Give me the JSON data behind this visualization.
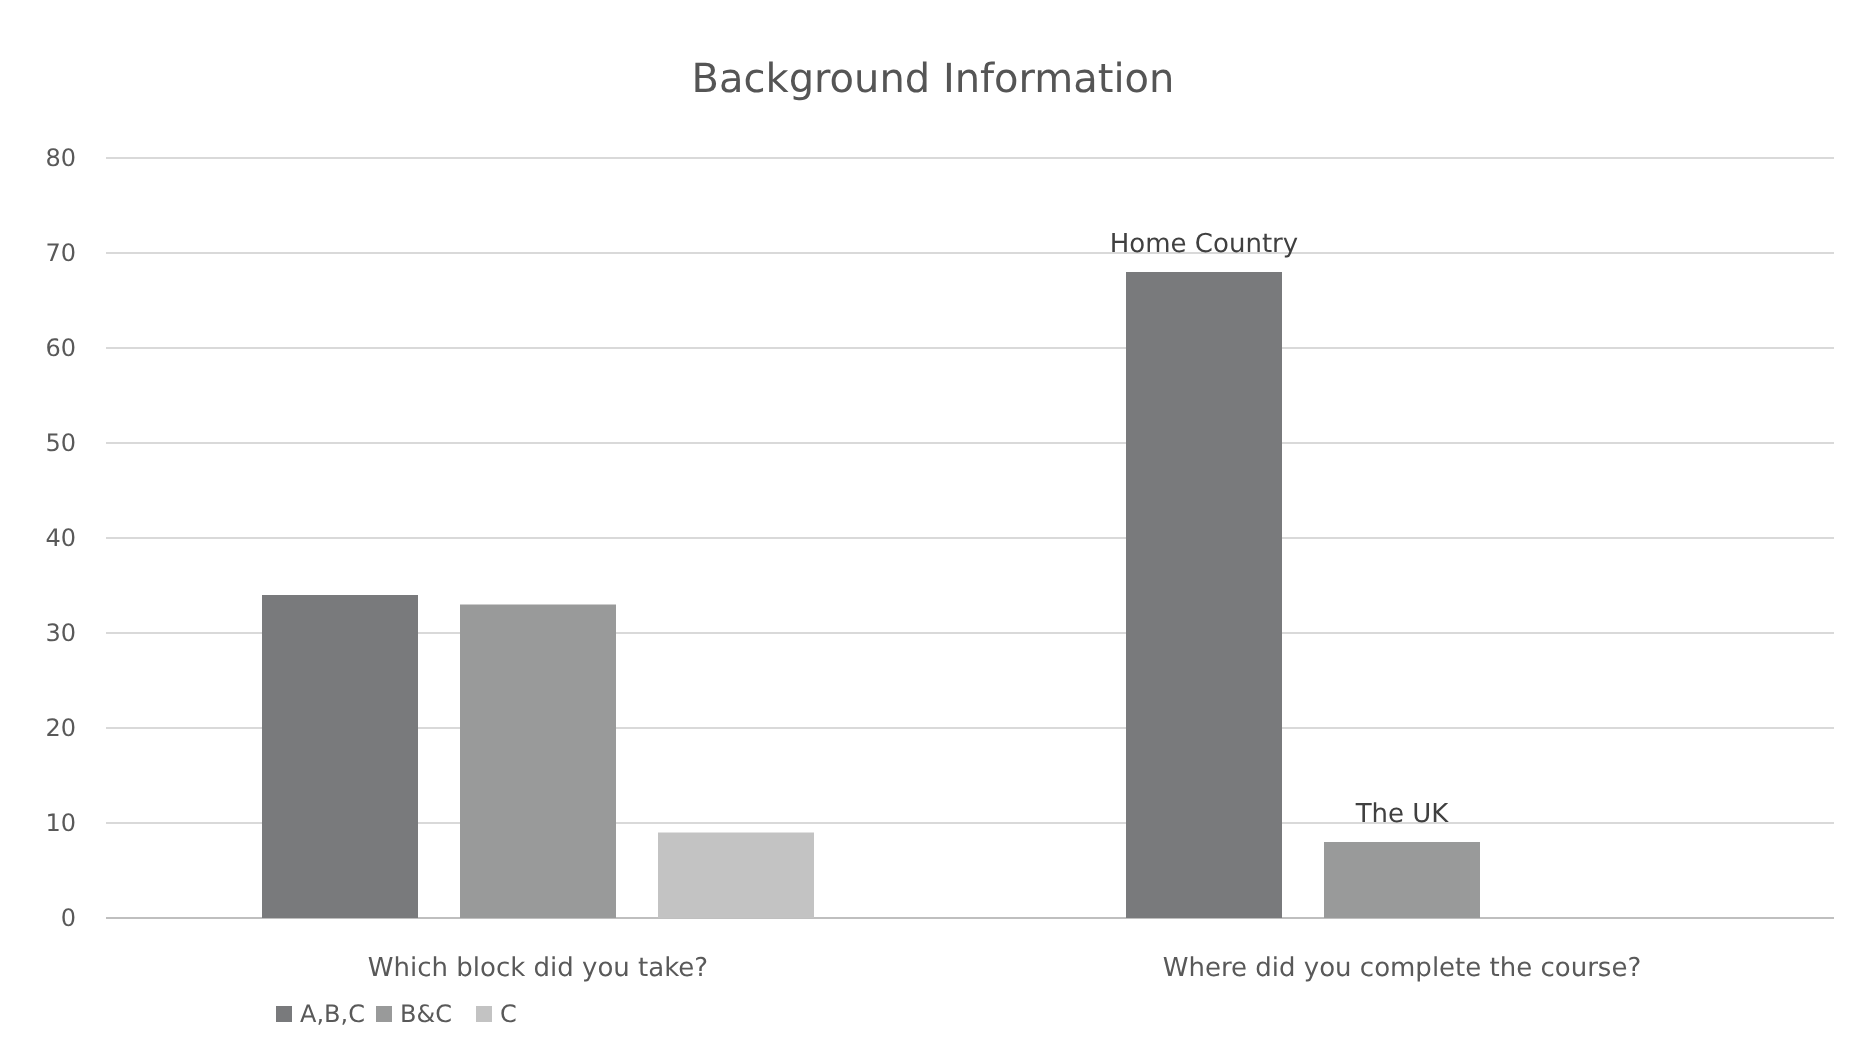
{
  "chart_data": {
    "type": "bar",
    "title": "Background Information",
    "categories": [
      "Which block did you take?",
      "Where did you complete the course?"
    ],
    "series": [
      {
        "name": "A,B,C",
        "color": "#797a7c",
        "values": [
          34,
          68
        ],
        "value_labels": [
          null,
          "Home Country"
        ]
      },
      {
        "name": "B&C",
        "color": "#999a9a",
        "values": [
          33,
          8
        ],
        "value_labels": [
          null,
          "The UK"
        ]
      },
      {
        "name": "C",
        "color": "#c3c3c3",
        "values": [
          9,
          null
        ]
      }
    ],
    "ylim": [
      0,
      80
    ],
    "yticks": [
      0,
      10,
      20,
      30,
      40,
      50,
      60,
      70,
      80
    ],
    "grid": "y",
    "legend": "bottom left"
  }
}
